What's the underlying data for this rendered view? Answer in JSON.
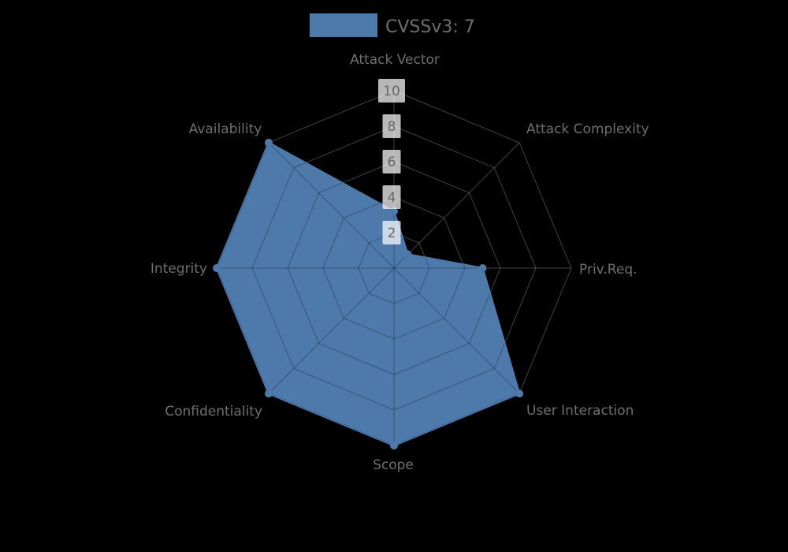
{
  "chart_data": {
    "type": "radar",
    "title": "",
    "legend": {
      "label": "CVSSv3: 7",
      "position": "top-center"
    },
    "categories": [
      "Attack Vector",
      "Attack Complexity",
      "Priv.Req.",
      "User Interaction",
      "Scope",
      "Confidentiality",
      "Integrity",
      "Availability"
    ],
    "series": [
      {
        "name": "CVSSv3: 7",
        "values": [
          3.2,
          1.1,
          5,
          10,
          10,
          10,
          10,
          10
        ]
      }
    ],
    "ticks": [
      10,
      8,
      6,
      4,
      2
    ],
    "axis_range": [
      0,
      10
    ],
    "grid": "polygonal rings at 2,4,6,8,10 with 8 spokes",
    "layout": {
      "start_axis": "top",
      "direction": "clockwise"
    },
    "colors": {
      "series_color": "#4d79ab",
      "background": "#000000",
      "grid_outside": "rgba(255,255,255,0.25)",
      "grid_inside": "rgba(0,0,0,0.22)",
      "label_text": "#6f6f6f",
      "tick_text": "#666666",
      "tick_box": "rgba(255,255,255,0.72)"
    }
  }
}
